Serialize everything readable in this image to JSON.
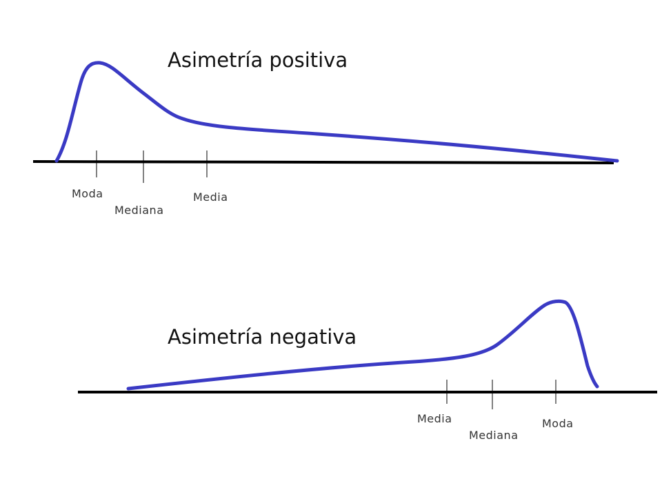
{
  "colors": {
    "curve": "#3a3ac4",
    "axis": "#000000",
    "text": "#111111",
    "label": "#333333"
  },
  "panels": [
    {
      "id": "positive",
      "title": "Asimetría positiva",
      "markers": [
        {
          "label": "Moda"
        },
        {
          "label": "Mediana"
        },
        {
          "label": "Media"
        }
      ]
    },
    {
      "id": "negative",
      "title": "Asimetría negativa",
      "markers": [
        {
          "label": "Media"
        },
        {
          "label": "Mediana"
        },
        {
          "label": "Moda"
        }
      ]
    }
  ]
}
